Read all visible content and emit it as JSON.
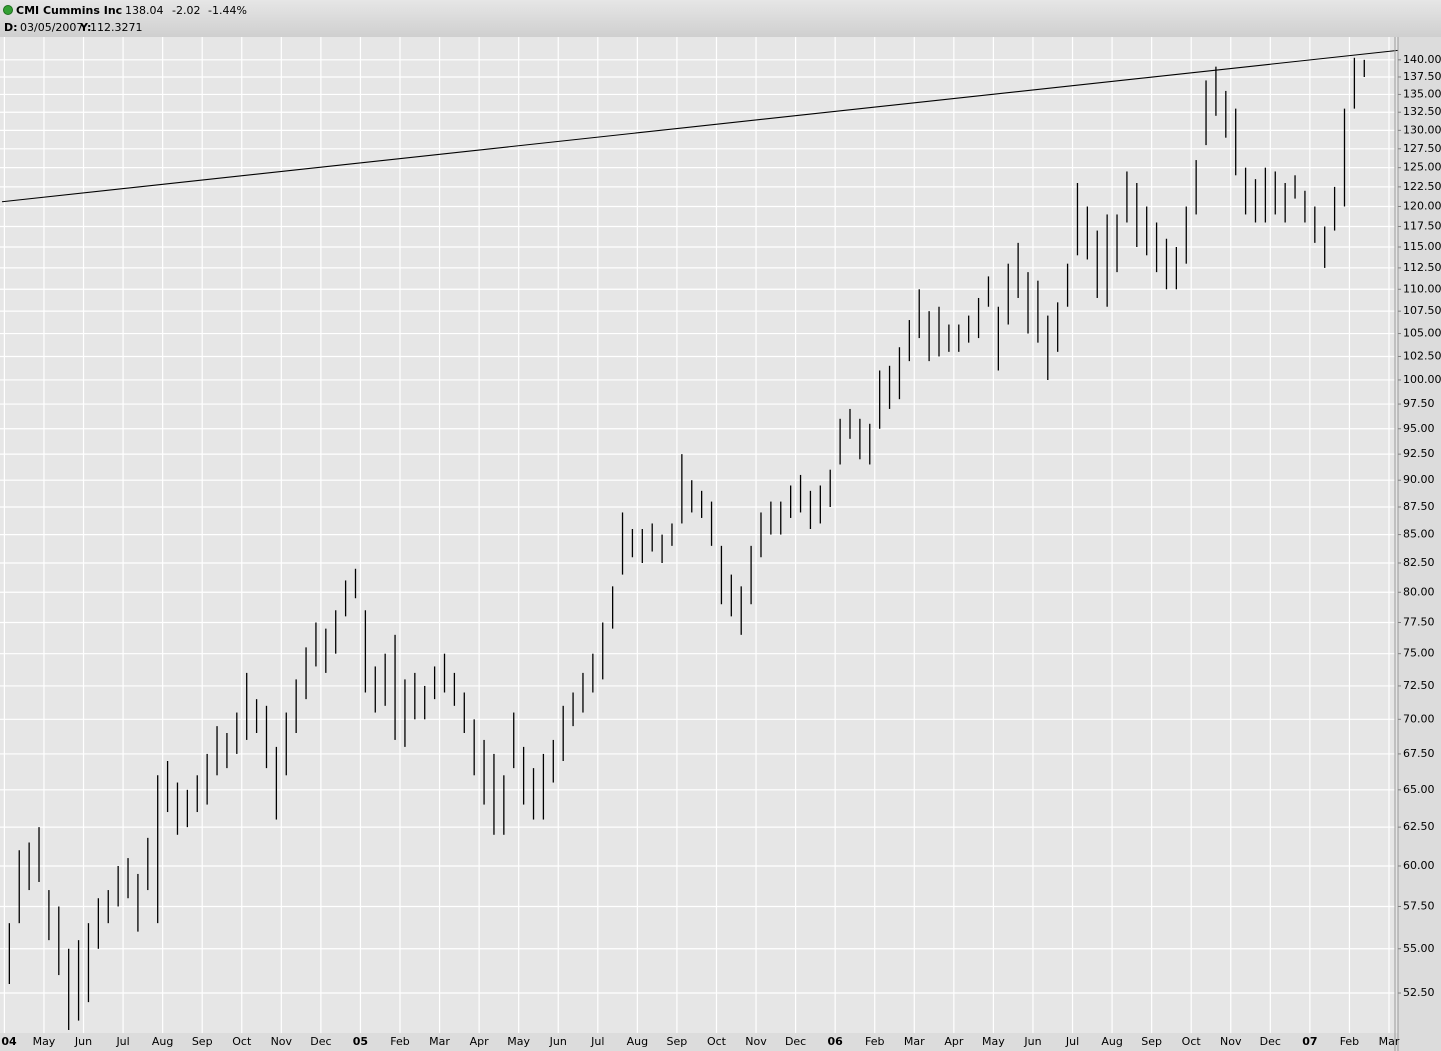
{
  "chart_data": {
    "type": "hilo",
    "title": "CMI Cummins Inc",
    "price": 138.04,
    "change": -2.02,
    "change_percent": {
      "value": -1.44,
      "label": "-1.44%"
    },
    "cursor": {
      "date_label": "D:",
      "date": "03/05/2007",
      "y_label": "Y:",
      "y": 112.3271
    },
    "log": true,
    "grid": true,
    "color": "#000000",
    "change_color": "#e00000",
    "trendline": [
      120.6,
      141.4
    ],
    "ylim": [
      50.34,
      143.4
    ],
    "yticks": [
      {
        "value": 52.5,
        "label": "52.50"
      },
      {
        "value": 55,
        "label": "55.00"
      },
      {
        "value": 57.5,
        "label": "57.50"
      },
      {
        "value": 60,
        "label": "60.00"
      },
      {
        "value": 62.5,
        "label": "62.50"
      },
      {
        "value": 65,
        "label": "65.00"
      },
      {
        "value": 67.5,
        "label": "67.50"
      },
      {
        "value": 70,
        "label": "70.00"
      },
      {
        "value": 72.5,
        "label": "72.50"
      },
      {
        "value": 75,
        "label": "75.00"
      },
      {
        "value": 77.5,
        "label": "77.50"
      },
      {
        "value": 80,
        "label": "80.00"
      },
      {
        "value": 82.5,
        "label": "82.50"
      },
      {
        "value": 85,
        "label": "85.00"
      },
      {
        "value": 87.5,
        "label": "87.50"
      },
      {
        "value": 90,
        "label": "90.00"
      },
      {
        "value": 92.5,
        "label": "92.50"
      },
      {
        "value": 95,
        "label": "95.00"
      },
      {
        "value": 97.5,
        "label": "97.50"
      },
      {
        "value": 100,
        "label": "100.00"
      },
      {
        "value": 102.5,
        "label": "102.50"
      },
      {
        "value": 105,
        "label": "105.00"
      },
      {
        "value": 107.5,
        "label": "107.50"
      },
      {
        "value": 110,
        "label": "110.00"
      },
      {
        "value": 112.5,
        "label": "112.50"
      },
      {
        "value": 115,
        "label": "115.00"
      },
      {
        "value": 117.5,
        "label": "117.50"
      },
      {
        "value": 120,
        "label": "120.00"
      },
      {
        "value": 122.5,
        "label": "122.50"
      },
      {
        "value": 125,
        "label": "125.00"
      },
      {
        "value": 127.5,
        "label": "127.50"
      },
      {
        "value": 130,
        "label": "130.00"
      },
      {
        "value": 132.5,
        "label": "132.50"
      },
      {
        "value": 135,
        "label": "135.00"
      },
      {
        "value": 137.5,
        "label": "137.50"
      },
      {
        "value": 140,
        "label": "140.00"
      }
    ],
    "categories": [
      "04",
      null,
      null,
      null,
      "May",
      null,
      null,
      null,
      "Jun",
      null,
      null,
      null,
      "Jul",
      null,
      null,
      null,
      "Aug",
      null,
      null,
      null,
      "Sep",
      null,
      null,
      null,
      "Oct",
      null,
      null,
      null,
      "Nov",
      null,
      null,
      null,
      "Dec",
      null,
      null,
      null,
      "05",
      null,
      null,
      null,
      "Feb",
      null,
      null,
      null,
      "Mar",
      null,
      null,
      null,
      "Apr",
      null,
      null,
      null,
      "May",
      null,
      null,
      null,
      "Jun",
      null,
      null,
      null,
      "Jul",
      null,
      null,
      null,
      "Aug",
      null,
      null,
      null,
      "Sep",
      null,
      null,
      null,
      "Oct",
      null,
      null,
      null,
      "Nov",
      null,
      null,
      null,
      "Dec",
      null,
      null,
      null,
      "06",
      null,
      null,
      null,
      "Feb",
      null,
      null,
      null,
      "Mar",
      null,
      null,
      null,
      "Apr",
      null,
      null,
      null,
      "May",
      null,
      null,
      null,
      "Jun",
      null,
      null,
      null,
      "Jul",
      null,
      null,
      null,
      "Aug",
      null,
      null,
      null,
      "Sep",
      null,
      null,
      null,
      "Oct",
      null,
      null,
      null,
      "Nov",
      null,
      null,
      null,
      "Dec",
      null,
      null,
      null,
      "07",
      null,
      null,
      null,
      "Feb",
      null,
      null,
      null,
      "Mar"
    ],
    "low": [
      53,
      56.5,
      58.5,
      59,
      55.5,
      53.5,
      50.5,
      51,
      52,
      55,
      56.5,
      57.5,
      58,
      56,
      58.5,
      56.5,
      63.5,
      62,
      62.5,
      63.5,
      64,
      66,
      66.5,
      67.5,
      68.5,
      69,
      66.5,
      63,
      66,
      69,
      71.5,
      74,
      73.5,
      75,
      78,
      79.5,
      72,
      70.5,
      71,
      68.5,
      68,
      70,
      70,
      71.5,
      72,
      71,
      69,
      66,
      64,
      62,
      62,
      66.5,
      64,
      63,
      63,
      65.5,
      67,
      69.5,
      70.5,
      72,
      73,
      77,
      81.5,
      83,
      82.5,
      83.5,
      82.5,
      84,
      86,
      87,
      86.5,
      84,
      79,
      78,
      76.5,
      79,
      83,
      85,
      85,
      86.5,
      87,
      85.5,
      86,
      87.5,
      91.5,
      94,
      92,
      91.5,
      95,
      97,
      98,
      102,
      104.5,
      102,
      102.5,
      103,
      103,
      104,
      104.5,
      108,
      101,
      106,
      109,
      105,
      104,
      100,
      103,
      108,
      114,
      113.5,
      109,
      108,
      112,
      118,
      115,
      114,
      112,
      110,
      110,
      113,
      119,
      128,
      132,
      129,
      124,
      119,
      118,
      118,
      119,
      118,
      121,
      118,
      115.5,
      112.5,
      117,
      120,
      133,
      137.5,
      null,
      null,
      null
    ],
    "high": [
      56.5,
      61,
      61.5,
      62.5,
      58.5,
      57.5,
      55,
      55.5,
      56.5,
      58,
      58.5,
      60,
      60.5,
      59.5,
      61.8,
      66,
      67,
      65.5,
      65,
      66,
      67.5,
      69.5,
      69,
      70.5,
      73.5,
      71.5,
      71,
      68,
      70.5,
      73,
      75.5,
      77.5,
      77,
      78.5,
      81,
      82,
      78.5,
      74,
      75,
      76.5,
      73,
      73.5,
      72.5,
      74,
      75,
      73.5,
      72,
      70,
      68.5,
      67.5,
      66,
      70.5,
      68,
      66.5,
      67.5,
      68.5,
      71,
      72,
      73.5,
      75,
      77.5,
      80.5,
      87,
      85.5,
      85.5,
      86,
      85,
      86,
      92.5,
      90,
      89,
      88,
      84,
      81.5,
      80.5,
      84,
      87,
      88,
      88,
      89.5,
      90.5,
      89,
      89.5,
      91,
      96,
      97,
      96,
      95.5,
      101,
      101.5,
      103.5,
      106.5,
      110,
      107.5,
      108,
      106,
      106,
      107,
      109,
      111.5,
      108,
      113,
      115.5,
      112,
      111,
      107,
      108.5,
      113,
      123,
      120,
      117,
      119,
      119,
      124.5,
      123,
      120,
      118,
      116,
      115,
      120,
      126,
      137,
      139,
      135.5,
      133,
      125,
      123.5,
      125,
      124.5,
      123,
      124,
      122,
      120,
      117.5,
      122.5,
      133,
      140.3,
      140,
      null,
      null,
      null
    ]
  }
}
